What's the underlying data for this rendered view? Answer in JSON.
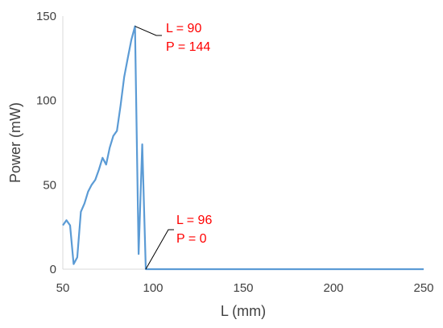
{
  "chart_data": {
    "type": "line",
    "title": "",
    "xlabel": "L (mm)",
    "ylabel": "Power (mW)",
    "xlim": [
      50,
      250
    ],
    "ylim": [
      0,
      150
    ],
    "x_ticks": [
      50,
      100,
      150,
      200,
      250
    ],
    "y_ticks": [
      0,
      50,
      100,
      150
    ],
    "grid": false,
    "legend": "none",
    "series": [
      {
        "color": "#5b9bd5",
        "x": [
          50,
          52,
          54,
          56,
          58,
          60,
          62,
          64,
          66,
          68,
          70,
          72,
          74,
          76,
          78,
          80,
          82,
          84,
          86,
          88,
          90,
          92,
          94,
          96,
          100,
          120,
          150,
          200,
          250
        ],
        "y": [
          26,
          29,
          26,
          3,
          7,
          34,
          39,
          46,
          50,
          53,
          59,
          66,
          62,
          72,
          79,
          82,
          97,
          114,
          125,
          136,
          144,
          9,
          74,
          0,
          0,
          0,
          0,
          0,
          0
        ]
      }
    ],
    "annotations": [
      {
        "line1": "L = 90",
        "line2": "P = 144",
        "point": {
          "x": 90,
          "y": 144
        },
        "color": "#ff0000"
      },
      {
        "line1": "L = 96",
        "line2": "P = 0",
        "point": {
          "x": 96,
          "y": 0
        },
        "color": "#ff0000"
      }
    ]
  }
}
